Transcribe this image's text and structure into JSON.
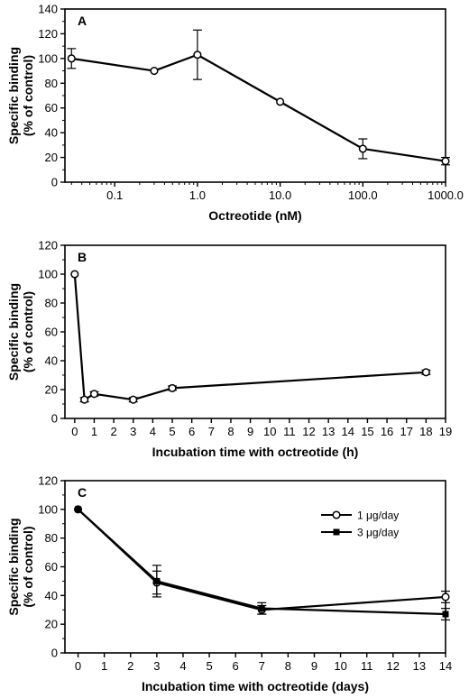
{
  "chart_data": [
    {
      "type": "line",
      "panel": "A",
      "xscale": "log",
      "xlabel": "Octreotide (nM)",
      "ylabel": [
        "Specific binding",
        "(% of control)"
      ],
      "ylim": [
        0,
        140
      ],
      "yticks": [
        0,
        20,
        40,
        60,
        80,
        100,
        120,
        140
      ],
      "xticks": [
        {
          "v": 0.1,
          "label": "0.1"
        },
        {
          "v": 1,
          "label": "1.0"
        },
        {
          "v": 10,
          "label": "10.0"
        },
        {
          "v": 100,
          "label": "100.0"
        },
        {
          "v": 1000,
          "label": "1000.0"
        }
      ],
      "xlim": [
        0.025,
        1000
      ],
      "series": [
        {
          "marker": "open-circle",
          "x": [
            0.03,
            0.3,
            1,
            10,
            100,
            1000
          ],
          "y": [
            100,
            90,
            103,
            65,
            27,
            17
          ],
          "err": [
            8,
            0,
            20,
            0,
            8,
            3
          ]
        }
      ]
    },
    {
      "type": "line",
      "panel": "B",
      "xlabel": "Incubation time with octreotide (h)",
      "ylabel": [
        "Specific binding",
        "(% of control)"
      ],
      "ylim": [
        0,
        120
      ],
      "yticks": [
        0,
        20,
        40,
        60,
        80,
        100,
        120
      ],
      "xlim": [
        -0.5,
        19
      ],
      "xticks": [
        {
          "v": 0,
          "label": "0"
        },
        {
          "v": 1,
          "label": "1"
        },
        {
          "v": 2,
          "label": "2"
        },
        {
          "v": 3,
          "label": "3"
        },
        {
          "v": 4,
          "label": "4"
        },
        {
          "v": 5,
          "label": "5"
        },
        {
          "v": 6,
          "label": "6"
        },
        {
          "v": 7,
          "label": "7"
        },
        {
          "v": 8,
          "label": "8"
        },
        {
          "v": 9,
          "label": "9"
        },
        {
          "v": 10,
          "label": "10"
        },
        {
          "v": 11,
          "label": "11"
        },
        {
          "v": 12,
          "label": "12"
        },
        {
          "v": 13,
          "label": "13"
        },
        {
          "v": 14,
          "label": "14"
        },
        {
          "v": 15,
          "label": "15"
        },
        {
          "v": 16,
          "label": "16"
        },
        {
          "v": 17,
          "label": "17"
        },
        {
          "v": 18,
          "label": "18"
        },
        {
          "v": 19,
          "label": "19"
        }
      ],
      "series": [
        {
          "marker": "open-circle",
          "x": [
            0,
            0.5,
            1,
            3,
            5,
            18
          ],
          "y": [
            100,
            13,
            17,
            13,
            21,
            32
          ],
          "err": [
            0,
            1.5,
            1.5,
            1.5,
            1.5,
            1.5
          ]
        }
      ]
    },
    {
      "type": "line",
      "panel": "C",
      "xlabel": "Incubation time with octreotide (days)",
      "ylabel": [
        "Specific binding",
        "(% of control)"
      ],
      "ylim": [
        0,
        120
      ],
      "yticks": [
        0,
        20,
        40,
        60,
        80,
        100,
        120
      ],
      "xlim": [
        -0.5,
        14
      ],
      "xticks": [
        {
          "v": 0,
          "label": "0"
        },
        {
          "v": 1,
          "label": "1"
        },
        {
          "v": 2,
          "label": "2"
        },
        {
          "v": 3,
          "label": "3"
        },
        {
          "v": 4,
          "label": "4"
        },
        {
          "v": 5,
          "label": "5"
        },
        {
          "v": 6,
          "label": "6"
        },
        {
          "v": 7,
          "label": "7"
        },
        {
          "v": 8,
          "label": "8"
        },
        {
          "v": 9,
          "label": "9"
        },
        {
          "v": 10,
          "label": "10"
        },
        {
          "v": 11,
          "label": "11"
        },
        {
          "v": 12,
          "label": "12"
        },
        {
          "v": 13,
          "label": "13"
        },
        {
          "v": 14,
          "label": "14"
        }
      ],
      "legend_position": "top-right",
      "series": [
        {
          "name": "1 μg/day",
          "marker": "open-circle",
          "x": [
            0,
            3,
            7,
            14
          ],
          "y": [
            100,
            49,
            30,
            39
          ],
          "err": [
            0,
            8,
            3,
            4
          ]
        },
        {
          "name": "3 μg/day",
          "marker": "filled-square",
          "x": [
            0,
            3,
            7,
            14
          ],
          "y": [
            100,
            50,
            31,
            27
          ],
          "err": [
            0,
            11,
            4,
            4
          ]
        }
      ]
    }
  ]
}
